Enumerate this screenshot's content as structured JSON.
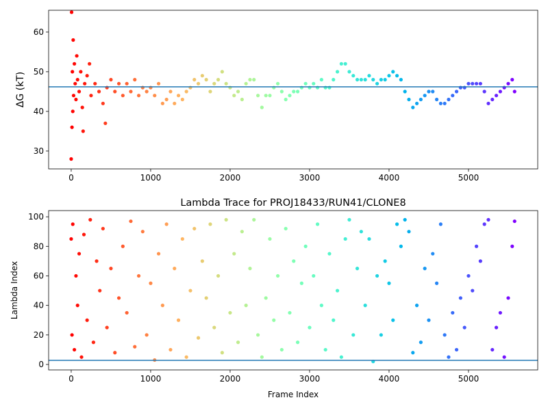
{
  "chart_data": [
    {
      "type": "scatter",
      "ylabel": "ΔG (kT)",
      "colormap": "rainbow",
      "hline": 46.2,
      "hline_color": "#1f77b4",
      "xlim": [
        -284,
        5871
      ],
      "ylim": [
        25.5,
        65.5
      ],
      "xticks": [
        0,
        1000,
        2000,
        3000,
        4000,
        5000
      ],
      "yticks": [
        30,
        40,
        50,
        60
      ],
      "x": [
        0,
        5,
        10,
        15,
        20,
        25,
        30,
        40,
        50,
        60,
        70,
        80,
        100,
        120,
        140,
        150,
        170,
        200,
        230,
        250,
        300,
        350,
        400,
        430,
        450,
        500,
        550,
        600,
        650,
        700,
        750,
        800,
        850,
        900,
        950,
        1000,
        1050,
        1100,
        1150,
        1200,
        1250,
        1300,
        1350,
        1400,
        1450,
        1500,
        1550,
        1600,
        1650,
        1700,
        1750,
        1800,
        1850,
        1900,
        1950,
        2000,
        2050,
        2100,
        2150,
        2200,
        2250,
        2300,
        2350,
        2400,
        2450,
        2500,
        2550,
        2600,
        2650,
        2700,
        2750,
        2800,
        2850,
        2900,
        2950,
        3000,
        3050,
        3100,
        3150,
        3200,
        3250,
        3300,
        3350,
        3400,
        3450,
        3500,
        3550,
        3600,
        3650,
        3700,
        3750,
        3800,
        3850,
        3900,
        3950,
        4000,
        4050,
        4100,
        4150,
        4200,
        4250,
        4300,
        4350,
        4400,
        4450,
        4500,
        4550,
        4600,
        4650,
        4700,
        4750,
        4800,
        4850,
        4900,
        4950,
        5000,
        5050,
        5100,
        5150,
        5200,
        5250,
        5300,
        5350,
        5400,
        5450,
        5500,
        5550,
        5580
      ],
      "values": [
        28,
        65,
        36,
        50,
        40,
        58,
        44,
        52,
        47,
        43,
        54,
        48,
        45,
        50,
        41,
        35,
        47,
        49,
        52,
        44,
        47,
        45,
        42,
        37,
        46,
        48,
        45,
        47,
        44,
        47,
        45,
        48,
        44,
        46,
        45,
        46,
        44,
        47,
        42,
        43,
        45,
        42,
        44,
        43,
        45,
        46,
        48,
        47,
        49,
        48,
        45,
        47,
        48,
        50,
        47,
        46,
        44,
        45,
        43,
        47,
        48,
        48,
        44,
        41,
        44,
        44,
        46,
        47,
        45,
        43,
        44,
        45,
        45,
        46,
        47,
        46,
        47,
        46,
        48,
        46,
        46,
        48,
        50,
        52,
        52,
        50,
        49,
        48,
        48,
        48,
        49,
        48,
        47,
        48,
        48,
        49,
        50,
        49,
        48,
        45,
        43,
        41,
        42,
        43,
        44,
        45,
        45,
        43,
        42,
        42,
        43,
        44,
        45,
        46,
        46,
        47,
        47,
        47,
        47,
        45,
        42,
        43,
        44,
        45,
        46,
        47,
        48,
        45
      ]
    },
    {
      "type": "scatter",
      "title": "Lambda Trace for PROJ18433/RUN41/CLONE8",
      "xlabel": "Frame Index",
      "ylabel": "Lambda Index",
      "colormap": "rainbow",
      "hline": 2.8,
      "hline_color": "#1f77b4",
      "xlim": [
        -284,
        5871
      ],
      "ylim": [
        -3.7,
        104.2
      ],
      "xticks": [
        0,
        1000,
        2000,
        3000,
        4000,
        5000
      ],
      "yticks": [
        0,
        20,
        40,
        60,
        80,
        100
      ],
      "x": [
        0,
        10,
        20,
        40,
        60,
        80,
        100,
        130,
        160,
        200,
        240,
        280,
        320,
        360,
        400,
        450,
        500,
        550,
        600,
        650,
        700,
        750,
        800,
        850,
        900,
        950,
        1000,
        1050,
        1100,
        1150,
        1200,
        1250,
        1300,
        1350,
        1400,
        1450,
        1500,
        1550,
        1600,
        1650,
        1700,
        1750,
        1800,
        1850,
        1900,
        1950,
        2000,
        2050,
        2100,
        2150,
        2200,
        2250,
        2300,
        2350,
        2400,
        2450,
        2500,
        2550,
        2600,
        2650,
        2700,
        2750,
        2800,
        2850,
        2900,
        2950,
        3000,
        3050,
        3100,
        3150,
        3200,
        3250,
        3300,
        3350,
        3400,
        3450,
        3500,
        3550,
        3600,
        3650,
        3700,
        3750,
        3800,
        3850,
        3900,
        3950,
        4000,
        4050,
        4100,
        4150,
        4200,
        4250,
        4300,
        4350,
        4400,
        4450,
        4500,
        4550,
        4600,
        4650,
        4700,
        4750,
        4800,
        4850,
        4900,
        4950,
        5000,
        5050,
        5100,
        5150,
        5200,
        5250,
        5300,
        5350,
        5400,
        5450,
        5500,
        5550,
        5580
      ],
      "values": [
        85,
        20,
        95,
        10,
        60,
        40,
        75,
        5,
        88,
        30,
        98,
        15,
        70,
        50,
        92,
        25,
        65,
        8,
        45,
        80,
        35,
        97,
        12,
        60,
        90,
        20,
        55,
        3,
        75,
        40,
        95,
        10,
        65,
        30,
        85,
        5,
        50,
        92,
        18,
        70,
        45,
        95,
        25,
        60,
        8,
        98,
        35,
        75,
        15,
        90,
        40,
        65,
        98,
        20,
        5,
        45,
        85,
        30,
        60,
        10,
        92,
        35,
        70,
        15,
        55,
        80,
        25,
        60,
        95,
        40,
        10,
        75,
        30,
        50,
        5,
        85,
        98,
        20,
        65,
        90,
        40,
        85,
        2,
        60,
        20,
        70,
        55,
        30,
        95,
        80,
        98,
        90,
        8,
        40,
        15,
        65,
        30,
        75,
        55,
        95,
        20,
        5,
        35,
        10,
        45,
        25,
        60,
        50,
        80,
        70,
        95,
        98,
        10,
        25,
        35,
        5,
        45,
        80,
        97
      ]
    }
  ]
}
